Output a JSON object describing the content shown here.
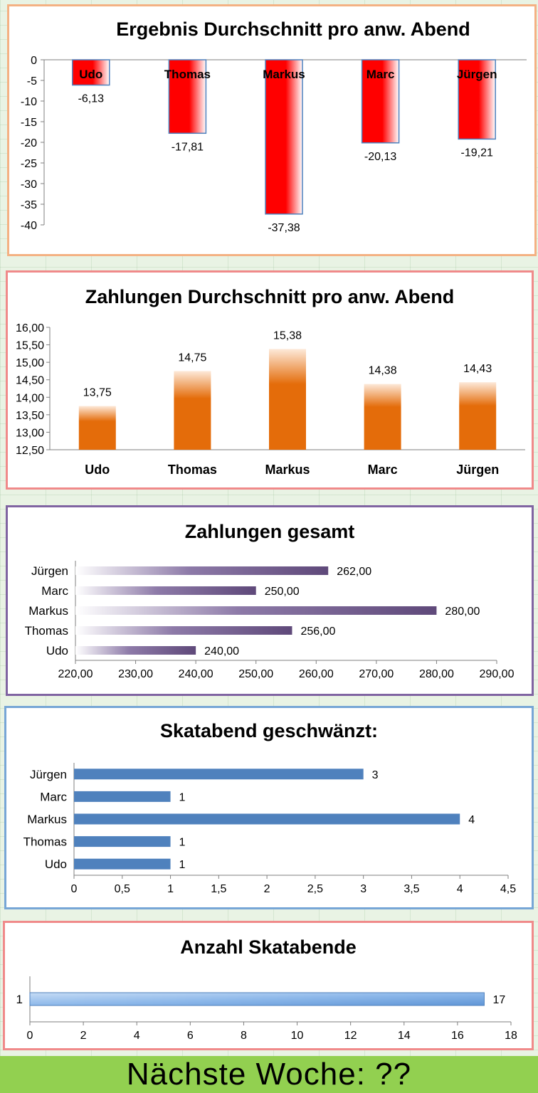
{
  "footer": {
    "text": "Nächste Woche: ??"
  },
  "chart_data": [
    {
      "type": "bar",
      "title": "Ergebnis Durchschnitt pro anw. Abend",
      "categories": [
        "Udo",
        "Thomas",
        "Markus",
        "Marc",
        "Jürgen"
      ],
      "values": [
        -6.13,
        -17.81,
        -37.38,
        -20.13,
        -19.21
      ],
      "value_labels": [
        "-6,13",
        "-17,81",
        "-37,38",
        "-20,13",
        "-19,21"
      ],
      "ylim": [
        -40,
        0
      ],
      "yticks": [
        "0",
        "-5",
        "-10",
        "-15",
        "-20",
        "-25",
        "-30",
        "-35",
        "-40"
      ],
      "xlabel": "",
      "ylabel": "",
      "bar_color": "#ff0000",
      "frame_color": "#f4b183"
    },
    {
      "type": "bar",
      "title": "Zahlungen Durchschnitt pro anw. Abend",
      "categories": [
        "Udo",
        "Thomas",
        "Markus",
        "Marc",
        "Jürgen"
      ],
      "values": [
        13.75,
        14.75,
        15.38,
        14.38,
        14.43
      ],
      "value_labels": [
        "13,75",
        "14,75",
        "15,38",
        "14,38",
        "14,43"
      ],
      "ylim": [
        12.5,
        16.0
      ],
      "yticks": [
        "12,50",
        "13,00",
        "13,50",
        "14,00",
        "14,50",
        "15,00",
        "15,50",
        "16,00"
      ],
      "xlabel": "",
      "ylabel": "",
      "bar_color": "#e46c0a",
      "frame_color": "#f08a8a"
    },
    {
      "type": "bar",
      "orientation": "horizontal",
      "title": "Zahlungen gesamt",
      "categories": [
        "Udo",
        "Thomas",
        "Markus",
        "Marc",
        "Jürgen"
      ],
      "values": [
        240,
        256,
        280,
        250,
        262
      ],
      "value_labels": [
        "240,00",
        "256,00",
        "280,00",
        "250,00",
        "262,00"
      ],
      "xlim": [
        220,
        290
      ],
      "xticks": [
        "220,00",
        "230,00",
        "240,00",
        "250,00",
        "260,00",
        "270,00",
        "280,00",
        "290,00"
      ],
      "xlabel": "",
      "ylabel": "",
      "bar_color": "#5f497a",
      "frame_color": "#8064a2"
    },
    {
      "type": "bar",
      "orientation": "horizontal",
      "title": "Skatabend geschwänzt:",
      "categories": [
        "Udo",
        "Thomas",
        "Markus",
        "Marc",
        "Jürgen"
      ],
      "values": [
        1,
        1,
        4,
        1,
        3
      ],
      "value_labels": [
        "1",
        "1",
        "4",
        "1",
        "3"
      ],
      "xlim": [
        0,
        4.5
      ],
      "xticks": [
        "0",
        "0,5",
        "1",
        "1,5",
        "2",
        "2,5",
        "3",
        "3,5",
        "4",
        "4,5"
      ],
      "xlabel": "",
      "ylabel": "",
      "bar_color": "#4f81bd",
      "frame_color": "#77a6d6"
    },
    {
      "type": "bar",
      "orientation": "horizontal",
      "title": "Anzahl Skatabende",
      "categories": [
        "1"
      ],
      "values": [
        17
      ],
      "value_labels": [
        "17"
      ],
      "xlim": [
        0,
        18
      ],
      "xticks": [
        "0",
        "2",
        "4",
        "6",
        "8",
        "10",
        "12",
        "14",
        "16",
        "18"
      ],
      "xlabel": "",
      "ylabel": "",
      "bar_color": "#7fb2e8",
      "frame_color": "#f08a8a"
    }
  ]
}
